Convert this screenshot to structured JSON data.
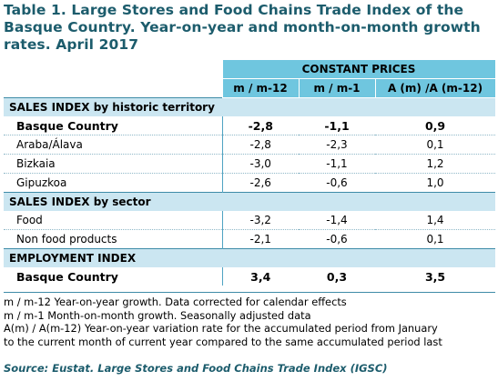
{
  "title": "Table 1. Large Stores and Food Chains Trade Index of the Basque Country. Year-on-year and month-on-month growth rates. April 2017",
  "header": {
    "group_label": "CONSTANT PRICES",
    "columns": [
      "m / m-12",
      "m / m-1",
      "A (m) /A (m-12)"
    ]
  },
  "sections": [
    {
      "label": "SALES INDEX by historic territory",
      "rows": [
        {
          "label": "Basque Country",
          "values": [
            "-2,8",
            "-1,1",
            "0,9"
          ],
          "bold": true
        },
        {
          "label": "Araba/Álava",
          "values": [
            "-2,8",
            "-2,3",
            "0,1"
          ],
          "bold": false
        },
        {
          "label": "Bizkaia",
          "values": [
            "-3,0",
            "-1,1",
            "1,2"
          ],
          "bold": false
        },
        {
          "label": "Gipuzkoa",
          "values": [
            "-2,6",
            "-0,6",
            "1,0"
          ],
          "bold": false
        }
      ]
    },
    {
      "label": "SALES INDEX by sector",
      "rows": [
        {
          "label": "Food",
          "values": [
            "-3,2",
            "-1,4",
            "1,4"
          ],
          "bold": false
        },
        {
          "label": "Non food products",
          "values": [
            "-2,1",
            "-0,6",
            "0,1"
          ],
          "bold": false
        }
      ]
    },
    {
      "label": "EMPLOYMENT INDEX",
      "rows": [
        {
          "label": "Basque Country",
          "values": [
            "3,4",
            "0,3",
            "3,5"
          ],
          "bold": true
        }
      ]
    }
  ],
  "notes": [
    "m / m-12 Year-on-year growth. Data corrected for calendar effects",
    "m / m-1 Month-on-month growth. Seasonally adjusted data",
    "A(m) / A(m-12) Year-on-year variation rate for the accumulated period from January",
    "to the current month of current year compared to the same accumulated period last"
  ],
  "source": "Source: Eustat. Large Stores and Food Chains Trade Index (IGSC)",
  "colors": {
    "title": "#1c5c6c",
    "header_bg": "#6fc6df",
    "section_bg": "#cbe6f1",
    "rule": "#3f8ca8"
  }
}
